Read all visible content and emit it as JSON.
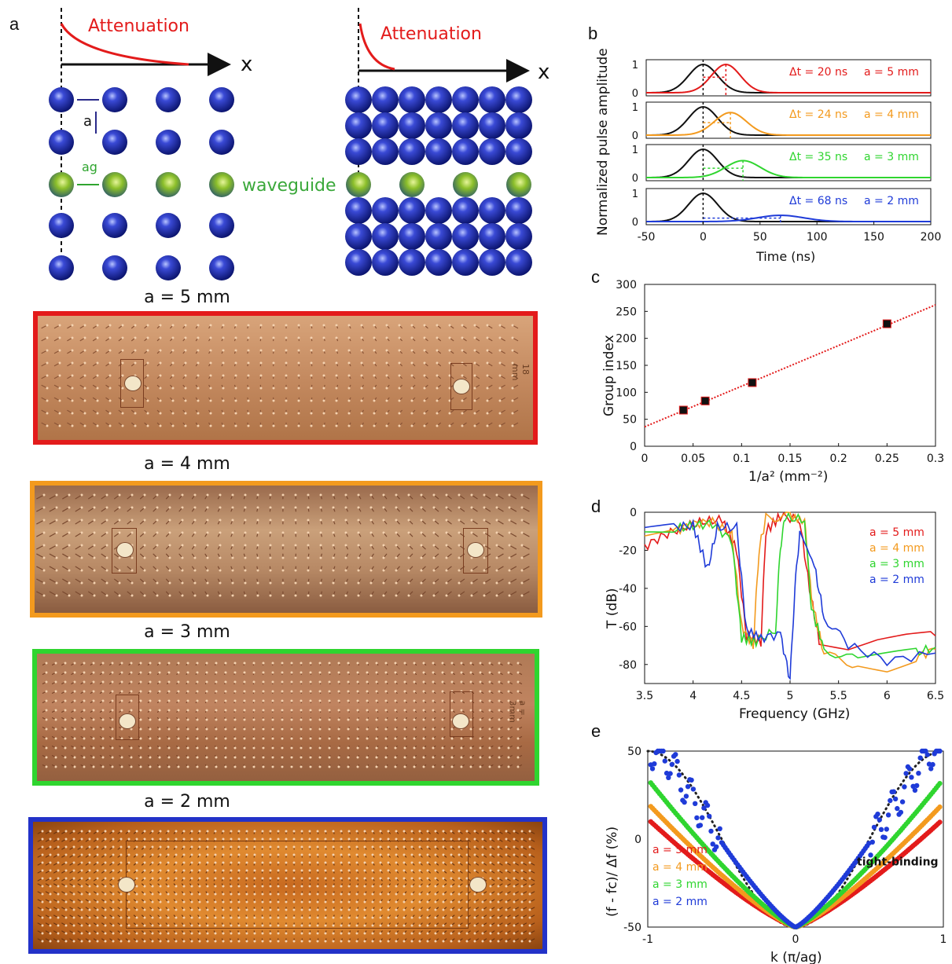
{
  "panels": {
    "a": "a",
    "b": "b",
    "c": "c",
    "d": "d",
    "e": "e"
  },
  "schematic": {
    "attenuation_left": "Attenuation",
    "attenuation_right": "Attenuation",
    "x_left": "x",
    "x_right": "x",
    "label_a": "a",
    "label_ag": "ag",
    "waveguide": "waveguide"
  },
  "photos": [
    {
      "title": "a = 5 mm",
      "color": "#e31b1b",
      "tag": "18 mm"
    },
    {
      "title": "a = 4 mm",
      "color": "#f39a1e",
      "tag": ""
    },
    {
      "title": "a = 3 mm",
      "color": "#2fd52f",
      "tag": "a = 3mm"
    },
    {
      "title": "a = 2 mm",
      "color": "#2332c8",
      "tag": ""
    }
  ],
  "colors": {
    "red": "#e31b1b",
    "orange": "#f39a1e",
    "green": "#2fd52f",
    "blue": "#1f3bd8"
  },
  "chart_data": [
    {
      "panel": "b",
      "type": "line",
      "ylabel": "Normalized pulse amplitude",
      "xlabel": "Time (ns)",
      "xlim": [
        -50,
        200
      ],
      "xticks": [
        "-50",
        "0",
        "50",
        "100",
        "150",
        "200"
      ],
      "subplots": [
        {
          "dt_label": "Δt = 20 ns",
          "a_label": "a = 5 mm",
          "delay": 20,
          "amp": 1.0,
          "width": 1.0,
          "color": "#e31b1b"
        },
        {
          "dt_label": "Δt = 24 ns",
          "a_label": "a = 4 mm",
          "delay": 24,
          "amp": 0.8,
          "width": 1.1,
          "color": "#f39a1e"
        },
        {
          "dt_label": "Δt = 35 ns",
          "a_label": "a = 3 mm",
          "delay": 35,
          "amp": 0.6,
          "width": 1.2,
          "color": "#2fd52f"
        },
        {
          "dt_label": "Δt = 68 ns",
          "a_label": "a = 2 mm",
          "delay": 68,
          "amp": 0.22,
          "width": 1.6,
          "color": "#1f3bd8"
        }
      ],
      "yticks": [
        "0",
        "1"
      ]
    },
    {
      "panel": "c",
      "type": "scatter",
      "xlabel": "1/a² (mm⁻²)",
      "ylabel": "Group index",
      "xlim": [
        0,
        0.3
      ],
      "ylim": [
        0,
        300
      ],
      "xticks": [
        "0",
        "0.05",
        "0.1",
        "0.15",
        "0.2",
        "0.25",
        "0.3"
      ],
      "yticks": [
        "0",
        "50",
        "100",
        "150",
        "200",
        "250",
        "300"
      ],
      "points": [
        {
          "x": 0.04,
          "y": 67
        },
        {
          "x": 0.0625,
          "y": 84
        },
        {
          "x": 0.111,
          "y": 118
        },
        {
          "x": 0.25,
          "y": 227
        }
      ],
      "fit": {
        "x0": 0,
        "y0": 36,
        "x1": 0.3,
        "y1": 262
      }
    },
    {
      "panel": "d",
      "type": "line",
      "xlabel": "Frequency (GHz)",
      "ylabel": "T (dB)",
      "xlim": [
        3.5,
        6.5
      ],
      "ylim": [
        -90,
        0
      ],
      "xticks": [
        "3.5",
        "4",
        "4.5",
        "5",
        "5.5",
        "6",
        "6.5"
      ],
      "yticks": [
        "0",
        "-20",
        "-40",
        "-60",
        "-80"
      ],
      "legend": [
        "a = 5 mm",
        "a = 4 mm",
        "a = 3 mm",
        "a = 2 mm"
      ],
      "series": [
        {
          "name": "a = 5 mm",
          "color": "#e31b1b",
          "pts": [
            [
              3.5,
              -18
            ],
            [
              3.7,
              -12
            ],
            [
              3.9,
              -8
            ],
            [
              4.1,
              -5
            ],
            [
              4.3,
              -4
            ],
            [
              4.45,
              -20
            ],
            [
              4.55,
              -65
            ],
            [
              4.7,
              -68
            ],
            [
              4.75,
              -10
            ],
            [
              4.9,
              -2
            ],
            [
              5.1,
              -4
            ],
            [
              5.2,
              -40
            ],
            [
              5.3,
              -68
            ],
            [
              5.6,
              -72
            ],
            [
              5.9,
              -68
            ],
            [
              6.2,
              -66
            ],
            [
              6.5,
              -65
            ]
          ]
        },
        {
          "name": "a = 4 mm",
          "color": "#f39a1e",
          "pts": [
            [
              3.5,
              -12
            ],
            [
              3.8,
              -10
            ],
            [
              4.0,
              -6
            ],
            [
              4.2,
              -5
            ],
            [
              4.4,
              -12
            ],
            [
              4.5,
              -60
            ],
            [
              4.62,
              -70
            ],
            [
              4.68,
              -20
            ],
            [
              4.75,
              -3
            ],
            [
              5.0,
              -2
            ],
            [
              5.15,
              -5
            ],
            [
              5.22,
              -45
            ],
            [
              5.35,
              -75
            ],
            [
              5.7,
              -80
            ],
            [
              6.0,
              -82
            ],
            [
              6.3,
              -76
            ],
            [
              6.5,
              -72
            ]
          ]
        },
        {
          "name": "a = 3 mm",
          "color": "#2fd52f",
          "pts": [
            [
              3.5,
              -10
            ],
            [
              3.8,
              -9
            ],
            [
              4.0,
              -7
            ],
            [
              4.2,
              -6
            ],
            [
              4.4,
              -15
            ],
            [
              4.5,
              -66
            ],
            [
              4.65,
              -68
            ],
            [
              4.85,
              -62
            ],
            [
              4.9,
              -18
            ],
            [
              4.95,
              -3
            ],
            [
              5.15,
              -4
            ],
            [
              5.22,
              -50
            ],
            [
              5.35,
              -72
            ],
            [
              5.7,
              -78
            ],
            [
              6.0,
              -76
            ],
            [
              6.3,
              -74
            ],
            [
              6.5,
              -71
            ]
          ]
        },
        {
          "name": "a = 2 mm",
          "color": "#1f3bd8",
          "pts": [
            [
              3.5,
              -9
            ],
            [
              3.8,
              -8
            ],
            [
              4.0,
              -7
            ],
            [
              4.15,
              -30
            ],
            [
              4.25,
              -8
            ],
            [
              4.45,
              -8
            ],
            [
              4.55,
              -62
            ],
            [
              4.7,
              -66
            ],
            [
              4.9,
              -64
            ],
            [
              5.0,
              -88
            ],
            [
              5.05,
              -40
            ],
            [
              5.1,
              -10
            ],
            [
              5.25,
              -28
            ],
            [
              5.35,
              -55
            ],
            [
              5.6,
              -70
            ],
            [
              6.0,
              -78
            ],
            [
              6.5,
              -74
            ]
          ]
        }
      ]
    },
    {
      "panel": "e",
      "type": "scatter",
      "xlabel": "k (π/ag)",
      "ylabel": "(f - fc)/ Δf (%)",
      "xlim": [
        -1,
        1
      ],
      "ylim": [
        -50,
        50
      ],
      "xticks": [
        "-1",
        "0",
        "1"
      ],
      "yticks": [
        "50",
        "0",
        "-50"
      ],
      "legend": [
        "a = 5 mm",
        "a = 4 mm",
        "a = 3 mm",
        "a = 2 mm"
      ],
      "annotation": "tight-binding",
      "series": [
        {
          "name": "a = 5 mm",
          "color": "#e31b1b",
          "k": 0.7
        },
        {
          "name": "a = 4 mm",
          "color": "#f39a1e",
          "k": 0.78
        },
        {
          "name": "a = 3 mm",
          "color": "#2fd52f",
          "k": 0.9
        },
        {
          "name": "a = 2 mm",
          "color": "#1f3bd8",
          "k": 1.15
        }
      ]
    }
  ]
}
